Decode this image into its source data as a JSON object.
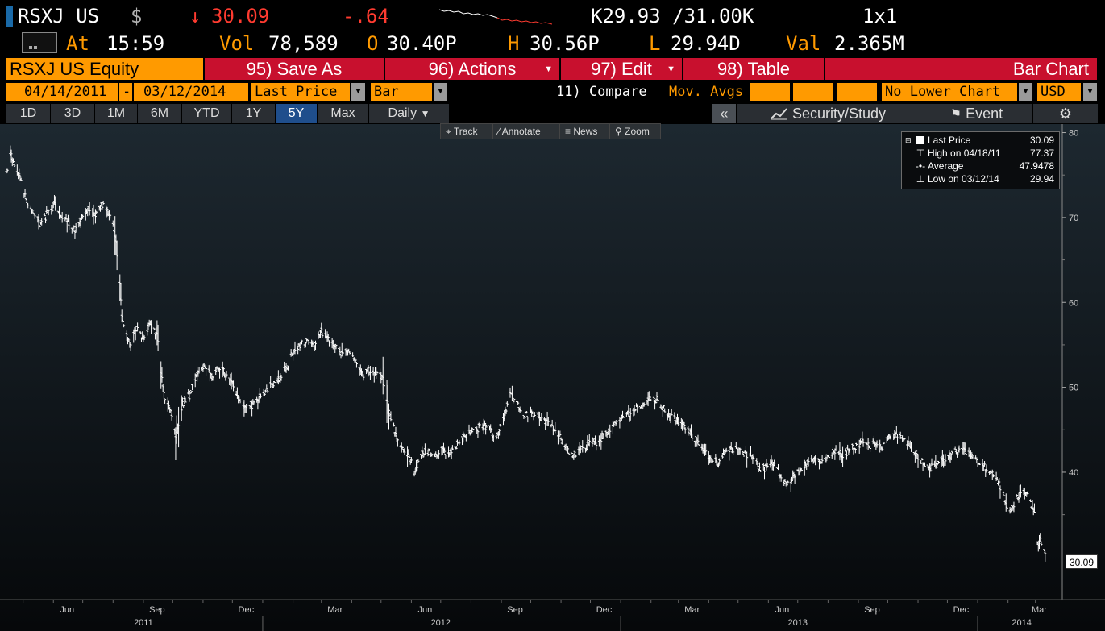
{
  "quote": {
    "ticker": "RSXJ US",
    "currency_symbol": "$",
    "arrow": "↓",
    "last": "30.09",
    "change": "-.64",
    "bid_ask": "K29.93 /31.00K",
    "size": "1x1",
    "at_label": "At",
    "time": "15:59",
    "vol_label": "Vol",
    "volume": "78,589",
    "open_label": "O",
    "open": "30.40P",
    "high_label": "H",
    "high": "30.56P",
    "low_label": "L",
    "low": "29.94D",
    "val_label": "Val",
    "value": "2.365M"
  },
  "toolbar": {
    "security": "RSXJ US Equity",
    "save_as": "95) Save As",
    "actions": "96) Actions",
    "edit": "97) Edit",
    "table": "98) Table",
    "chart_type_title": "Bar Chart"
  },
  "params": {
    "start_date": "04/14/2011",
    "dash": "-",
    "end_date": "03/12/2014",
    "field": "Last Price",
    "style": "Bar",
    "compare": "11) Compare",
    "mov_avgs": "Mov. Avgs",
    "lower_chart": "No Lower Chart",
    "currency": "USD"
  },
  "periods": [
    "1D",
    "3D",
    "1M",
    "6M",
    "YTD",
    "1Y",
    "5Y",
    "Max"
  ],
  "selected_period": "5Y",
  "frequency": "Daily",
  "right_tools": {
    "collapse": "«",
    "security_study": "Security/Study",
    "event": "Event",
    "settings_icon": "gear-icon"
  },
  "mini_tools": [
    "Track",
    "Annotate",
    "News",
    "Zoom"
  ],
  "legend": [
    {
      "label": "Last Price",
      "value": "30.09"
    },
    {
      "label": "High on 04/18/11",
      "value": "77.37"
    },
    {
      "label": "Average",
      "value": "47.9478"
    },
    {
      "label": "Low on 03/12/14",
      "value": "29.94"
    }
  ],
  "last_price_tag": "30.09",
  "colors": {
    "amber": "#ff9a00",
    "red": "#c8102e",
    "price_red": "#ff3b30",
    "tab_selected": "#1f4e8c"
  },
  "chart_data": {
    "type": "bar",
    "y_ticks": [
      "80",
      "70",
      "60",
      "50",
      "40"
    ],
    "ylim": [
      25,
      81
    ],
    "x_month_ticks": [
      "Jun",
      "Sep",
      "Dec",
      "Mar",
      "Jun",
      "Sep",
      "Dec",
      "Mar",
      "Jun",
      "Sep",
      "Dec",
      "Mar"
    ],
    "x_year_labels": [
      "2011",
      "2012",
      "2013",
      "2014"
    ],
    "series": [
      {
        "points": [
          [
            "2011-04-14",
            75.0
          ],
          [
            "2011-04-18",
            77.4
          ],
          [
            "2011-04-28",
            74.5
          ],
          [
            "2011-05-05",
            72.0
          ],
          [
            "2011-05-12",
            70.5
          ],
          [
            "2011-05-19",
            69.0
          ],
          [
            "2011-05-26",
            70.5
          ],
          [
            "2011-06-02",
            71.5
          ],
          [
            "2011-06-09",
            70.0
          ],
          [
            "2011-06-16",
            69.5
          ],
          [
            "2011-06-23",
            68.5
          ],
          [
            "2011-06-30",
            70.0
          ],
          [
            "2011-07-07",
            71.0
          ],
          [
            "2011-07-14",
            70.5
          ],
          [
            "2011-07-21",
            71.5
          ],
          [
            "2011-07-28",
            70.5
          ],
          [
            "2011-08-03",
            68.0
          ],
          [
            "2011-08-08",
            62.0
          ],
          [
            "2011-08-10",
            58.0
          ],
          [
            "2011-08-18",
            55.0
          ],
          [
            "2011-08-25",
            57.0
          ],
          [
            "2011-09-01",
            55.5
          ],
          [
            "2011-09-08",
            57.5
          ],
          [
            "2011-09-15",
            56.0
          ],
          [
            "2011-09-22",
            49.0
          ],
          [
            "2011-09-29",
            47.0
          ],
          [
            "2011-10-04",
            44.0
          ],
          [
            "2011-10-11",
            48.0
          ],
          [
            "2011-10-18",
            49.0
          ],
          [
            "2011-10-27",
            52.0
          ],
          [
            "2011-11-03",
            52.5
          ],
          [
            "2011-11-10",
            51.0
          ],
          [
            "2011-11-17",
            52.5
          ],
          [
            "2011-11-24",
            51.5
          ],
          [
            "2011-12-01",
            50.5
          ],
          [
            "2011-12-08",
            48.5
          ],
          [
            "2011-12-15",
            47.5
          ],
          [
            "2011-12-22",
            48.0
          ],
          [
            "2011-12-29",
            49.0
          ],
          [
            "2012-01-05",
            49.5
          ],
          [
            "2012-01-12",
            50.5
          ],
          [
            "2012-01-19",
            51.0
          ],
          [
            "2012-01-26",
            52.5
          ],
          [
            "2012-02-02",
            54.5
          ],
          [
            "2012-02-09",
            55.0
          ],
          [
            "2012-02-16",
            55.5
          ],
          [
            "2012-02-23",
            55.0
          ],
          [
            "2012-03-01",
            56.5
          ],
          [
            "2012-03-08",
            55.5
          ],
          [
            "2012-03-15",
            55.0
          ],
          [
            "2012-03-22",
            54.0
          ],
          [
            "2012-03-29",
            54.5
          ],
          [
            "2012-04-05",
            53.0
          ],
          [
            "2012-04-12",
            51.5
          ],
          [
            "2012-04-19",
            52.0
          ],
          [
            "2012-04-26",
            51.5
          ],
          [
            "2012-05-03",
            51.0
          ],
          [
            "2012-05-10",
            47.0
          ],
          [
            "2012-05-17",
            44.0
          ],
          [
            "2012-05-24",
            42.5
          ],
          [
            "2012-05-31",
            41.5
          ],
          [
            "2012-06-04",
            40.0
          ],
          [
            "2012-06-11",
            42.0
          ],
          [
            "2012-06-18",
            42.5
          ],
          [
            "2012-06-25",
            41.5
          ],
          [
            "2012-07-02",
            43.0
          ],
          [
            "2012-07-09",
            42.0
          ],
          [
            "2012-07-16",
            43.0
          ],
          [
            "2012-07-23",
            44.0
          ],
          [
            "2012-07-30",
            44.5
          ],
          [
            "2012-08-06",
            45.0
          ],
          [
            "2012-08-13",
            45.5
          ],
          [
            "2012-08-20",
            45.0
          ],
          [
            "2012-08-27",
            44.0
          ],
          [
            "2012-09-03",
            46.5
          ],
          [
            "2012-09-10",
            49.0
          ],
          [
            "2012-09-17",
            48.0
          ],
          [
            "2012-09-24",
            46.5
          ],
          [
            "2012-10-01",
            47.0
          ],
          [
            "2012-10-08",
            46.5
          ],
          [
            "2012-10-15",
            46.0
          ],
          [
            "2012-10-22",
            45.5
          ],
          [
            "2012-10-29",
            44.5
          ],
          [
            "2012-11-05",
            43.0
          ],
          [
            "2012-11-12",
            42.0
          ],
          [
            "2012-11-19",
            42.5
          ],
          [
            "2012-11-26",
            43.0
          ],
          [
            "2012-12-03",
            43.5
          ],
          [
            "2012-12-10",
            43.5
          ],
          [
            "2012-12-17",
            44.5
          ],
          [
            "2012-12-24",
            45.5
          ],
          [
            "2013-01-03",
            46.5
          ],
          [
            "2013-01-10",
            47.0
          ],
          [
            "2013-01-17",
            47.5
          ],
          [
            "2013-01-24",
            48.0
          ],
          [
            "2013-01-31",
            48.5
          ],
          [
            "2013-02-07",
            48.5
          ],
          [
            "2013-02-14",
            47.5
          ],
          [
            "2013-02-21",
            46.5
          ],
          [
            "2013-02-28",
            46.0
          ],
          [
            "2013-03-07",
            45.5
          ],
          [
            "2013-03-14",
            44.5
          ],
          [
            "2013-03-21",
            43.5
          ],
          [
            "2013-03-28",
            42.5
          ],
          [
            "2013-04-04",
            41.5
          ],
          [
            "2013-04-11",
            41.0
          ],
          [
            "2013-04-18",
            42.5
          ],
          [
            "2013-04-25",
            42.5
          ],
          [
            "2013-05-02",
            43.0
          ],
          [
            "2013-05-09",
            42.0
          ],
          [
            "2013-05-16",
            41.5
          ],
          [
            "2013-05-23",
            40.5
          ],
          [
            "2013-05-30",
            40.5
          ],
          [
            "2013-06-06",
            41.0
          ],
          [
            "2013-06-13",
            39.5
          ],
          [
            "2013-06-20",
            38.5
          ],
          [
            "2013-06-27",
            39.5
          ],
          [
            "2013-07-04",
            40.5
          ],
          [
            "2013-07-11",
            41.0
          ],
          [
            "2013-07-18",
            41.5
          ],
          [
            "2013-07-25",
            41.0
          ],
          [
            "2013-08-01",
            42.0
          ],
          [
            "2013-08-08",
            42.5
          ],
          [
            "2013-08-15",
            42.0
          ],
          [
            "2013-08-22",
            42.5
          ],
          [
            "2013-08-29",
            43.0
          ],
          [
            "2013-09-05",
            43.5
          ],
          [
            "2013-09-12",
            43.0
          ],
          [
            "2013-09-19",
            43.5
          ],
          [
            "2013-09-26",
            43.0
          ],
          [
            "2013-10-03",
            44.0
          ],
          [
            "2013-10-10",
            44.5
          ],
          [
            "2013-10-17",
            44.0
          ],
          [
            "2013-10-24",
            43.0
          ],
          [
            "2013-10-31",
            42.0
          ],
          [
            "2013-11-07",
            41.0
          ],
          [
            "2013-11-14",
            40.5
          ],
          [
            "2013-11-21",
            41.0
          ],
          [
            "2013-11-28",
            41.5
          ],
          [
            "2013-12-05",
            42.0
          ],
          [
            "2013-12-12",
            42.5
          ],
          [
            "2013-12-19",
            42.5
          ],
          [
            "2013-12-26",
            42.0
          ],
          [
            "2014-01-02",
            41.0
          ],
          [
            "2014-01-09",
            40.5
          ],
          [
            "2014-01-16",
            40.0
          ],
          [
            "2014-01-23",
            38.5
          ],
          [
            "2014-01-30",
            36.5
          ],
          [
            "2014-02-03",
            35.0
          ],
          [
            "2014-02-10",
            37.0
          ],
          [
            "2014-02-17",
            38.0
          ],
          [
            "2014-02-24",
            36.5
          ],
          [
            "2014-02-28",
            35.0
          ],
          [
            "2014-03-03",
            31.5
          ],
          [
            "2014-03-06",
            32.0
          ],
          [
            "2014-03-10",
            30.8
          ],
          [
            "2014-03-12",
            30.09
          ]
        ]
      }
    ]
  }
}
